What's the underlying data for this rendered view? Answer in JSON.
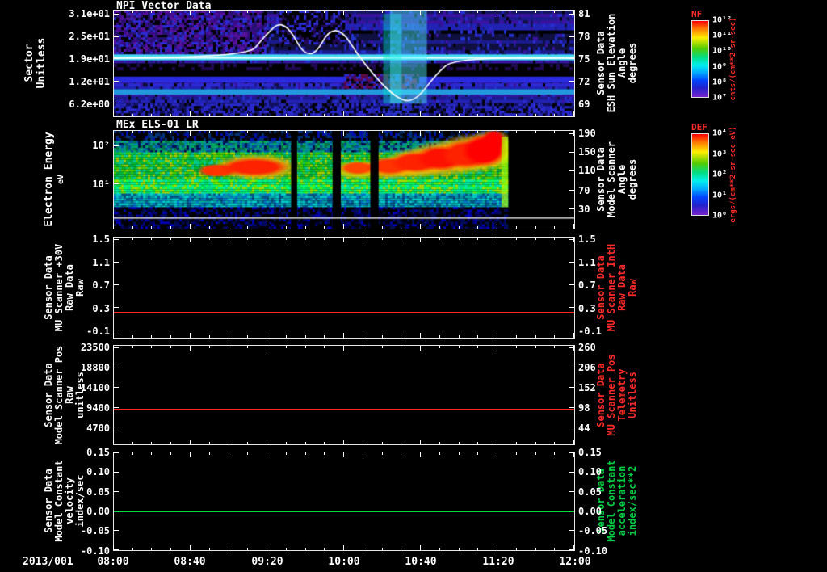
{
  "titles": {
    "panel1": "NPI Vector Data",
    "panel2": "MEx ELS-01 LR"
  },
  "xaxis": {
    "date": "2013/001",
    "ticks": [
      "08:00",
      "08:40",
      "09:20",
      "10:00",
      "10:40",
      "11:20",
      "12:00"
    ]
  },
  "panels": {
    "p1": {
      "left_label": [
        "Sector",
        "Unitless"
      ],
      "left_ticks": [
        "3.1e+01",
        "2.5e+01",
        "1.9e+01",
        "1.2e+01",
        "6.2e+00"
      ],
      "right_label": [
        "Sensor Data",
        "ESH Sun Elevation",
        "Angle",
        "degrees"
      ],
      "right_ticks": [
        "81",
        "78",
        "75",
        "72",
        "69"
      ]
    },
    "p2": {
      "left_label": [
        "Electron Energy",
        "eV"
      ],
      "left_ticks": [
        "10²",
        "10¹"
      ],
      "right_label": [
        "Sensor Data",
        "Model Scanner",
        "Angle",
        "degrees"
      ],
      "right_ticks": [
        "190",
        "150",
        "110",
        "70",
        "30"
      ]
    },
    "p3": {
      "left_label": [
        "Sensor Data",
        "MU Scanner +30V",
        "Raw Data",
        "Raw"
      ],
      "left_ticks": [
        "1.5",
        "1.1",
        "0.7",
        "0.3",
        "-0.1"
      ],
      "right_label": [
        "Sensor Data",
        "MU Scanner IntH",
        "Raw Data",
        "Raw"
      ],
      "right_ticks": [
        "1.5",
        "1.1",
        "0.7",
        "0.3",
        "-0.1"
      ]
    },
    "p4": {
      "left_label": [
        "Sensor Data",
        "Model Scanner Pos",
        "Raw",
        "unitless"
      ],
      "left_ticks": [
        "23500",
        "18800",
        "14100",
        "9400",
        "4700"
      ],
      "right_label": [
        "Sensor Data",
        "MU Scanner Pos",
        "Telemetry",
        "Unitless"
      ],
      "right_ticks": [
        "260",
        "206",
        "152",
        "98",
        "44"
      ]
    },
    "p5": {
      "left_label": [
        "Sensor Data",
        "Model Constant",
        "velocity",
        "index/sec"
      ],
      "left_ticks": [
        "0.15",
        "0.10",
        "0.05",
        "0.00",
        "-0.05",
        "-0.10"
      ],
      "right_label": [
        "Sensor Data",
        "Model Constant",
        "acceleration",
        "index/sec**2"
      ],
      "right_ticks": [
        "0.15",
        "0.10",
        "0.05",
        "0.00",
        "-0.05",
        "-0.10"
      ]
    }
  },
  "colorbars": {
    "nf": {
      "title": "NF",
      "ticks": [
        "10¹²",
        "10¹¹",
        "10¹⁰",
        "10⁹",
        "10⁸",
        "10⁷"
      ],
      "units": "cnts/(cm**2-sr-sec)"
    },
    "def": {
      "title": "DEF",
      "ticks": [
        "10⁴",
        "10³",
        "10²",
        "10¹",
        "10⁰"
      ],
      "units": "ergs/(cm**2-sr-sec-eV)"
    }
  },
  "chart_data": [
    {
      "type": "heatmap",
      "title": "NPI Vector Data",
      "ylabel": "Sector (Unitless)",
      "y_ticks": [
        31,
        25,
        19,
        12,
        6.2
      ],
      "right_axis": {
        "label": "Sensor Data ESH Sun Elevation Angle (degrees)",
        "ticks": [
          81,
          78,
          75,
          72,
          69
        ]
      },
      "x_range": [
        "2013/001 08:00",
        "2013/001 12:00"
      ],
      "colorbar": {
        "name": "NF",
        "units": "cnts/(cm**2-sr-sec)",
        "ticks_log10": [
          12,
          11,
          10,
          9,
          8,
          7
        ]
      },
      "overlay_line": {
        "name": "ESH Sun Elevation Angle",
        "color": "#ffffff",
        "description": "flat near 75 deg until ~09:20, oscillates between ~81 and ~69 deg from ~09:20 to ~11:00, then flat near 75 deg to 12:00"
      },
      "description": "Sector-vs-time count spectrogram: mostly blue/purple low counts, bright cyan band near sector 19, black band below it, cyan vertical enhancement near 10:40, purple haze 08:00-09:20",
      "render": {
        "rows": 32,
        "base_palette": [
          "#1b1b8e",
          "#2222b4",
          "#14145f",
          "#2a2ad0",
          "#3a12a0",
          "#101040",
          "#2233cc",
          "#000000"
        ],
        "features": [
          {
            "t": "speckle",
            "x": 0,
            "y": 0,
            "w": 0.33,
            "h": 0.4,
            "colors": [
              "#551199",
              "#3a0a8a",
              "#22126e",
              "#000000",
              "#2a2ad0"
            ],
            "cell": 3
          },
          {
            "t": "speckle",
            "x": 0.36,
            "y": 0,
            "w": 0.14,
            "h": 0.3,
            "colors": [
              "#000000",
              "#000000",
              "#220a55",
              "#2a2ad0"
            ],
            "cell": 3
          },
          {
            "t": "rect",
            "x": 0,
            "y": 0.415,
            "w": 1,
            "h": 0.055,
            "c": "#44ddee"
          },
          {
            "t": "rect",
            "x": 0,
            "y": 0.44,
            "w": 1,
            "h": 0.015,
            "c": "#eeffff"
          },
          {
            "t": "rect",
            "x": 0,
            "y": 0.5,
            "w": 1,
            "h": 0.125,
            "c": "#000000"
          },
          {
            "t": "speckle",
            "x": 0,
            "y": 0.505,
            "w": 1,
            "h": 0.04,
            "colors": [
              "#000000",
              "#000000",
              "#220a55"
            ],
            "cell": 4
          },
          {
            "t": "rect",
            "x": 0,
            "y": 0.625,
            "w": 1,
            "h": 0.055,
            "c": "#2a2ae0"
          },
          {
            "t": "speckle",
            "x": 0.5,
            "y": 0.6,
            "w": 0.16,
            "h": 0.15,
            "colors": [
              "#6a0a3a",
              "#4a0a5a",
              "#000000",
              "#2a2ad0"
            ],
            "cell": 3
          },
          {
            "t": "rect",
            "x": 0,
            "y": 0.745,
            "w": 1,
            "h": 0.05,
            "c": "#2299dd"
          },
          {
            "t": "rect",
            "x": 0.585,
            "y": 0.03,
            "w": 0.04,
            "h": 0.97,
            "c": "rgba(0,230,190,0.40)"
          },
          {
            "t": "rect",
            "x": 0.6,
            "y": 0,
            "w": 0.08,
            "h": 1,
            "c": "rgba(80,240,255,0.45)"
          },
          {
            "t": "speckle",
            "x": 0,
            "y": 0.88,
            "w": 1,
            "h": 0.12,
            "colors": [
              "#2222b4",
              "#101060",
              "#2a2ad0",
              "#000000"
            ],
            "cell": 3
          }
        ],
        "line": {
          "c": "#ffffff",
          "pts": [
            [
              0,
              0.45
            ],
            [
              0.29,
              0.45
            ],
            [
              0.325,
              0.25
            ],
            [
              0.37,
              0.07
            ],
            [
              0.425,
              0.52
            ],
            [
              0.48,
              0.08
            ],
            [
              0.545,
              0.52
            ],
            [
              0.615,
              0.84
            ],
            [
              0.655,
              0.86
            ],
            [
              0.7,
              0.6
            ],
            [
              0.74,
              0.45
            ],
            [
              1,
              0.45
            ]
          ]
        }
      }
    },
    {
      "type": "heatmap",
      "title": "MEx ELS-01 LR",
      "ylabel": "Electron Energy (eV)",
      "yscale": "log",
      "y_ticks": [
        100,
        10
      ],
      "right_axis": {
        "label": "Sensor Data Model Scanner Angle (degrees)",
        "ticks": [
          190,
          150,
          110,
          70,
          30
        ]
      },
      "colorbar": {
        "name": "DEF",
        "units": "ergs/(cm**2-sr-sec-eV)",
        "ticks_log10": [
          4,
          3,
          2,
          1,
          0
        ]
      },
      "description": "Electron energy-flux spectrogram: green band 10-60 eV, red enhancement ~08:55-09:35 near 30-50 eV, strong red enhancement ~10:20-11:20 rising toward ~200 eV, data gap columns near 09:35/09:55/10:10, data ends ~11:25, white constant line near bottom",
      "render": {
        "data_end": 0.857,
        "bands": [
          {
            "y": 0,
            "h": 0.1,
            "colors": [
              "#000000",
              "#000000",
              "#001133",
              "#0011aa",
              "#003377",
              "#000000"
            ]
          },
          {
            "y": 0.1,
            "h": 0.12,
            "colors": [
              "#005599",
              "#0088aa",
              "#00aa66",
              "#007744",
              "#001155",
              "#009988"
            ]
          },
          {
            "y": 0.22,
            "h": 0.28,
            "colors": [
              "#00bb33",
              "#33cc00",
              "#00cc66",
              "#55cc00",
              "#00aa44",
              "#aacc00",
              "#00cc99"
            ]
          },
          {
            "y": 0.5,
            "h": 0.14,
            "colors": [
              "#00dd55",
              "#66ee00",
              "#00eeaa",
              "#aadd00",
              "#00ff66",
              "#00dd88"
            ]
          },
          {
            "y": 0.64,
            "h": 0.14,
            "colors": [
              "#00aaaa",
              "#0077cc",
              "#005588",
              "#00cccc",
              "#0099aa"
            ]
          },
          {
            "y": 0.78,
            "h": 0.22,
            "colors": [
              "#000033",
              "#000077",
              "#0000bb",
              "#000000",
              "#001155",
              "#000000",
              "#000000"
            ]
          }
        ],
        "halos": [
          {
            "cx": 0.31,
            "cy": 0.37,
            "rx": 0.1,
            "ry": 0.14,
            "c": "#ffaa00"
          },
          {
            "cx": 0.53,
            "cy": 0.4,
            "rx": 0.06,
            "ry": 0.1,
            "c": "#ddcc00"
          },
          {
            "cx": 0.6,
            "cy": 0.38,
            "rx": 0.07,
            "ry": 0.12,
            "c": "#ffaa00"
          },
          {
            "cx": 0.66,
            "cy": 0.33,
            "rx": 0.08,
            "ry": 0.16,
            "c": "#ffbb00"
          },
          {
            "cx": 0.72,
            "cy": 0.28,
            "rx": 0.09,
            "ry": 0.19,
            "c": "#ffaa00"
          },
          {
            "cx": 0.78,
            "cy": 0.23,
            "rx": 0.09,
            "ry": 0.21,
            "c": "#ffbb00"
          },
          {
            "cx": 0.82,
            "cy": 0.18,
            "rx": 0.06,
            "ry": 0.2,
            "c": "#ffcc00"
          }
        ],
        "cores": [
          {
            "cx": 0.225,
            "cy": 0.405,
            "rx": 0.045,
            "ry": 0.07,
            "c": "#ff3300"
          },
          {
            "cx": 0.305,
            "cy": 0.37,
            "rx": 0.075,
            "ry": 0.095,
            "c": "#ff2200"
          },
          {
            "cx": 0.53,
            "cy": 0.38,
            "rx": 0.04,
            "ry": 0.07,
            "c": "#ff4400"
          },
          {
            "cx": 0.6,
            "cy": 0.36,
            "rx": 0.05,
            "ry": 0.09,
            "c": "#ff3300"
          },
          {
            "cx": 0.655,
            "cy": 0.32,
            "rx": 0.055,
            "ry": 0.11,
            "c": "#ff2200"
          },
          {
            "cx": 0.71,
            "cy": 0.28,
            "rx": 0.055,
            "ry": 0.13,
            "c": "#ff1100"
          },
          {
            "cx": 0.765,
            "cy": 0.24,
            "rx": 0.055,
            "ry": 0.15,
            "c": "#ff2200"
          },
          {
            "cx": 0.805,
            "cy": 0.2,
            "rx": 0.05,
            "ry": 0.17,
            "c": "#ff0000"
          },
          {
            "cx": 0.825,
            "cy": 0.1,
            "rx": 0.028,
            "ry": 0.11,
            "c": "#ff0000"
          }
        ],
        "gaps": [
          [
            0.385,
            0.013
          ],
          [
            0.475,
            0.018
          ],
          [
            0.557,
            0.018
          ]
        ],
        "end_column": {
          "x": 0.842,
          "w": 0.015,
          "y": 0.06,
          "h": 0.72,
          "c": "rgba(180,255,0,0.65)"
        },
        "hline": {
          "y": 0.886,
          "c": "#ffffff"
        }
      }
    },
    {
      "type": "line",
      "ylabel": "Sensor Data MU Scanner +30V Raw Data (Raw)",
      "right_label": "Sensor Data MU Scanner IntH Raw Data (Raw)",
      "y_ticks": [
        1.5,
        1.1,
        0.7,
        0.3,
        -0.1
      ],
      "series": [
        {
          "name": "MU Scanner IntH Raw Data",
          "color": "#ff2a2a",
          "constant_value": 0.2
        }
      ],
      "render": {
        "line_frac": 0.754,
        "color": "#ff2a2a"
      }
    },
    {
      "type": "line",
      "ylabel": "Sensor Data Model Scanner Pos Raw (unitless)",
      "right_label": "Sensor Data MU Scanner Pos Telemetry (Unitless)",
      "y_ticks": [
        23500,
        18800,
        14100,
        9400,
        4700
      ],
      "right_ticks": [
        260,
        206,
        152,
        98,
        44
      ],
      "series": [
        {
          "name": "MU Scanner Pos Telemetry",
          "color": "#ff2a2a",
          "constant_value": 9000
        }
      ],
      "render": {
        "line_frac": 0.645,
        "color": "#ff2a2a"
      }
    },
    {
      "type": "line",
      "ylabel": "Sensor Data Model Constant velocity (index/sec)",
      "right_label": "Sensor Data Model Constant acceleration (index/sec**2)",
      "y_ticks": [
        0.15,
        0.1,
        0.05,
        0.0,
        -0.05,
        -0.1
      ],
      "series": [
        {
          "name": "Model Constant acceleration",
          "color": "#00cc44",
          "constant_value": 0.0
        }
      ],
      "render": {
        "line_frac": 0.602,
        "color": "#00dd44"
      }
    }
  ]
}
